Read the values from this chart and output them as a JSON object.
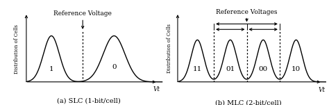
{
  "slc": {
    "peaks": [
      1.2,
      4.2
    ],
    "peak_sigmas": [
      0.38,
      0.52
    ],
    "labels": [
      "1",
      "0"
    ],
    "ref_voltage": 2.7,
    "ref_label": "Reference Voltage",
    "xlabel": "Vt",
    "ylabel": "Distribution of Cells",
    "caption": "(a) SLC (1-bit/cell)"
  },
  "mlc": {
    "peaks": [
      1.2,
      3.2,
      5.2,
      7.2
    ],
    "peak_sigmas": [
      0.38,
      0.38,
      0.38,
      0.38
    ],
    "labels": [
      "11",
      "01",
      "00",
      "10"
    ],
    "ref_voltages": [
      2.2,
      4.2,
      6.2
    ],
    "ref_label": "Reference Voltages",
    "xlabel": "Vt",
    "ylabel": "Distribution of Cells",
    "caption": "(b) MLC (2-bit/cell)"
  },
  "curve_color": "#000000",
  "bg_color": "#ffffff",
  "font_size": 6.5,
  "caption_font_size": 7.0
}
